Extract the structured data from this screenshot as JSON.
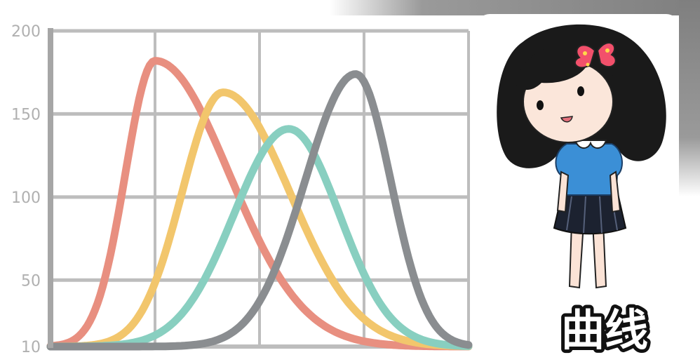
{
  "caption": "曲线",
  "colors": {
    "grid": "#bdbdbd",
    "axis": "#a6a6a6",
    "tick_text": "#b0b0b0",
    "frame": "#8f8f8f"
  },
  "chart_data": {
    "type": "line",
    "title": "",
    "xlabel": "",
    "ylabel": "",
    "ylim": [
      10,
      200
    ],
    "xlim": [
      0,
      4
    ],
    "yticks": [
      10,
      50,
      100,
      150,
      200
    ],
    "grid": true,
    "legend": "none",
    "series": [
      {
        "color": "#e88f80",
        "peak_x": 1.0,
        "peak_y": 182,
        "spread_left": 0.42,
        "spread_right": 1.05,
        "base": 10
      },
      {
        "color": "#f2c66c",
        "peak_x": 1.65,
        "peak_y": 163,
        "spread_left": 0.58,
        "spread_right": 0.95,
        "base": 10
      },
      {
        "color": "#88cfc0",
        "peak_x": 2.28,
        "peak_y": 141,
        "spread_left": 0.78,
        "spread_right": 0.72,
        "base": 10
      },
      {
        "color": "#8a8d90",
        "peak_x": 2.92,
        "peak_y": 174,
        "spread_left": 0.72,
        "spread_right": 0.5,
        "base": 10
      }
    ]
  }
}
